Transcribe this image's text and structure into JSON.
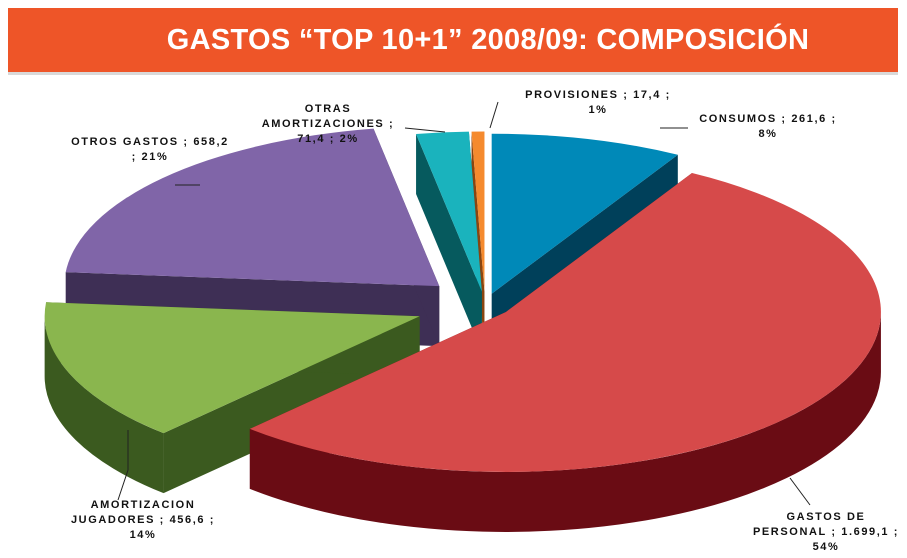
{
  "header": {
    "title": "GASTOS “TOP 10+1” 2008/09: COMPOSICIÓN",
    "background": "#ee5528"
  },
  "chart_data": {
    "type": "pie",
    "title": "GASTOS “TOP 10+1” 2008/09: COMPOSICIÓN",
    "three_d": true,
    "exploded": true,
    "slices": [
      {
        "name": "CONSUMOS",
        "value": 261.6,
        "percent": 8,
        "label_lines": [
          "CONSUMOS ; 261,6 ;",
          "8%"
        ],
        "color": "#0089b8",
        "side_color": "#00405a"
      },
      {
        "name": "GASTOS DE PERSONAL",
        "value": 1699.1,
        "percent": 54,
        "label_lines": [
          "GASTOS DE",
          "PERSONAL ; 1.699,1 ;",
          "54%"
        ],
        "color": "#d64a4a",
        "side_color": "#6a0c14"
      },
      {
        "name": "AMORTIZACION JUGADORES",
        "value": 456.6,
        "percent": 14,
        "label_lines": [
          "AMORTIZACION",
          "JUGADORES ; 456,6 ;",
          "14%"
        ],
        "color": "#8ab64e",
        "side_color": "#3b5a1f"
      },
      {
        "name": "OTROS GASTOS",
        "value": 658.2,
        "percent": 21,
        "label_lines": [
          "OTROS GASTOS ; 658,2",
          "; 21%"
        ],
        "color": "#8065a8",
        "side_color": "#3e2f55"
      },
      {
        "name": "OTRAS AMORTIZACIONES",
        "value": 71.4,
        "percent": 2,
        "label_lines": [
          "OTRAS",
          "AMORTIZACIONES ;",
          "71,4 ; 2%"
        ],
        "color": "#1ab3bd",
        "side_color": "#065a5e"
      },
      {
        "name": "PROVISIONES",
        "value": 17.4,
        "percent": 1,
        "label_lines": [
          "PROVISIONES ; 17,4 ;",
          "1%"
        ],
        "color": "#f58a2e",
        "side_color": "#8a4510"
      }
    ]
  }
}
